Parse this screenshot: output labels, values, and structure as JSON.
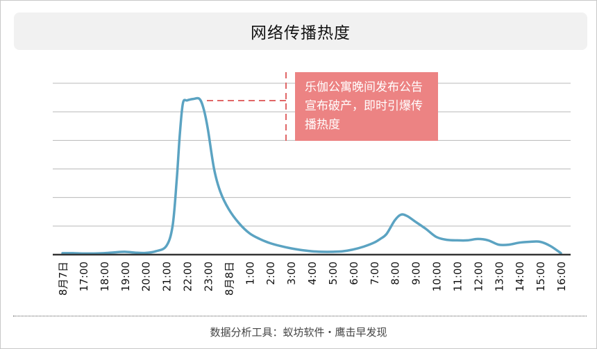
{
  "title": "网络传播热度",
  "annotation": "乐伽公寓晚间发布公告宣布破产，即时引爆传播热度",
  "footer": "数据分析工具：蚁坊软件・鹰击早发现",
  "colors": {
    "line": "#5ba3c2",
    "annotation_bg": "#ec8383",
    "annotation_line": "#e06666"
  },
  "chart_data": {
    "type": "line",
    "title": "网络传播热度",
    "xlabel": "",
    "ylabel": "",
    "ylim": [
      0,
      6
    ],
    "grid": true,
    "legend": "none",
    "x_ticks": [
      "8月7日",
      "17:00",
      "18:00",
      "19:00",
      "20:00",
      "21:00",
      "22:00",
      "23:00",
      "8月8日",
      "1:00",
      "2:00",
      "3:00",
      "4:00",
      "5:00",
      "6:00",
      "7:00",
      "8:00",
      "9:00",
      "10:00",
      "11:00",
      "12:00",
      "13:00",
      "14:00",
      "15:00",
      "16:00"
    ],
    "x": [
      0,
      0.5,
      1,
      1.5,
      2,
      2.5,
      3,
      3.5,
      4,
      4.5,
      5,
      5.3,
      5.5,
      5.65,
      5.8,
      6,
      6.3,
      6.6,
      6.8,
      7,
      7.3,
      7.6,
      8,
      8.5,
      9,
      9.5,
      10,
      10.5,
      11,
      11.5,
      12,
      12.5,
      13,
      13.5,
      14,
      14.5,
      15,
      15.3,
      15.6,
      16,
      16.3,
      16.6,
      17,
      17.5,
      18,
      18.5,
      19,
      19.5,
      20,
      20.5,
      21,
      21.5,
      22,
      22.5,
      23,
      23.5,
      24
    ],
    "values": [
      0.05,
      0.05,
      0.04,
      0.04,
      0.05,
      0.08,
      0.1,
      0.07,
      0.06,
      0.12,
      0.3,
      1.0,
      2.6,
      4.2,
      5.3,
      5.4,
      5.45,
      5.45,
      5.1,
      4.4,
      3.0,
      2.2,
      1.6,
      1.1,
      0.75,
      0.55,
      0.4,
      0.3,
      0.22,
      0.16,
      0.12,
      0.1,
      0.1,
      0.12,
      0.18,
      0.28,
      0.42,
      0.55,
      0.72,
      1.2,
      1.4,
      1.35,
      1.15,
      0.9,
      0.62,
      0.52,
      0.5,
      0.5,
      0.55,
      0.5,
      0.35,
      0.35,
      0.42,
      0.45,
      0.45,
      0.3,
      0.05
    ]
  }
}
